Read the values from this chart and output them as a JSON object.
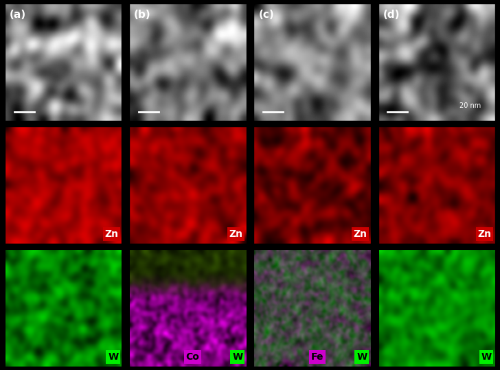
{
  "fig_width": 7.28,
  "fig_height": 5.39,
  "dpi": 100,
  "panel_labels": [
    "(a)",
    "(b)",
    "(c)",
    "(d)"
  ],
  "row1_bg": "#808080",
  "row2_bg": "#cc0000",
  "row3_bg_a": "#006600",
  "row3_bg_b": "#000000",
  "row3_bg_c": "#000000",
  "row3_bg_d": "#006600",
  "zn_label": "Zn",
  "zn_label_color": "#ffffff",
  "zn_bg_color": "#cc0000",
  "w_label": "W",
  "w_bg_color": "#00cc00",
  "w_text_color": "#000000",
  "co_label": "Co",
  "co_bg_color": "#cc00cc",
  "co_text_color": "#000000",
  "fe_label": "Fe",
  "fe_bg_color": "#cc00cc",
  "fe_text_color": "#000000",
  "scale_bar_text": "20 nm",
  "panel_label_color": "#ffffff",
  "panel_label_fontsize": 11,
  "border_color": "#000000",
  "border_linewidth": 1.5
}
